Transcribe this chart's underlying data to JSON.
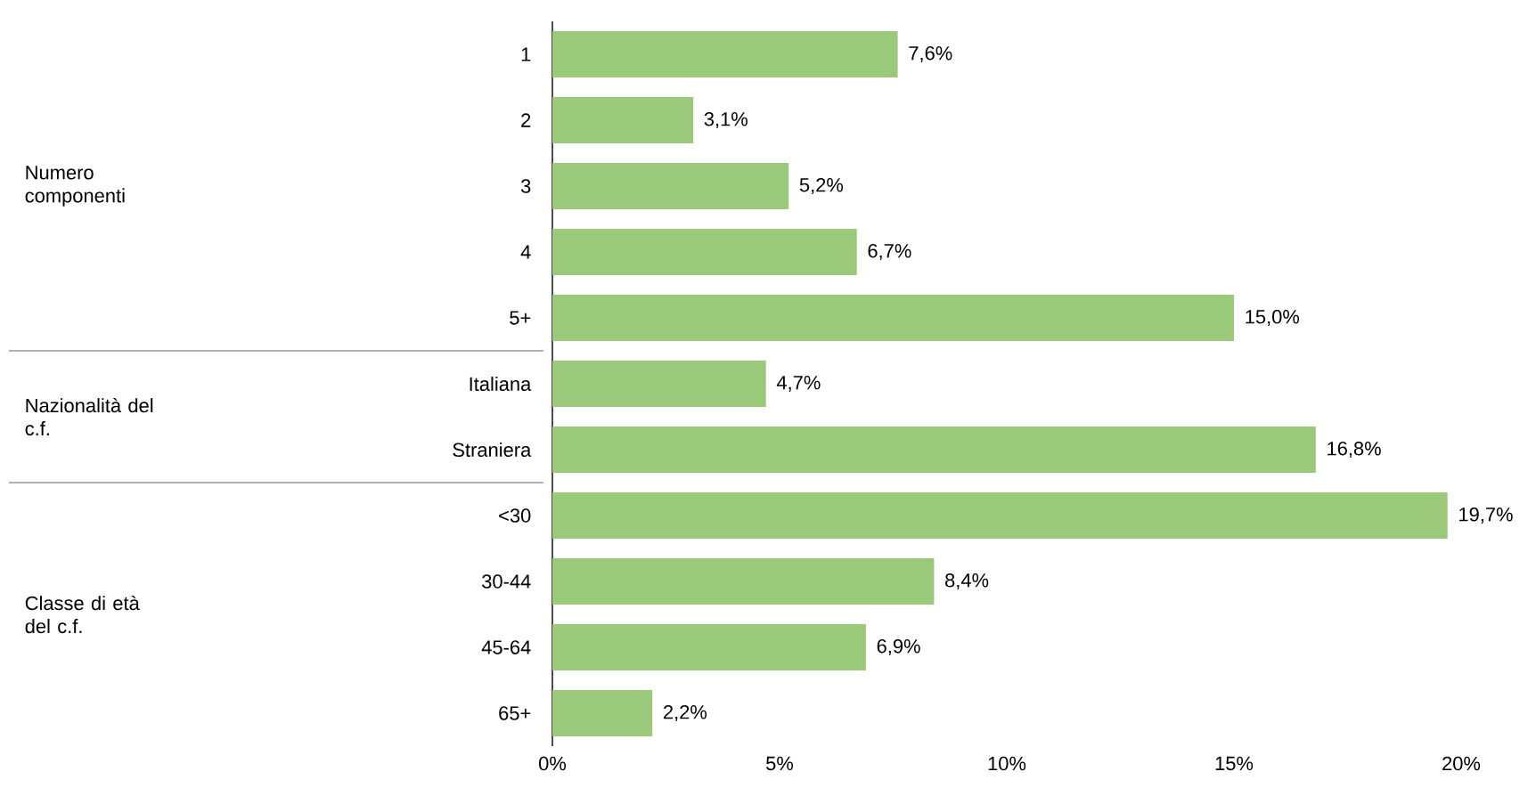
{
  "chart_data": {
    "type": "bar",
    "orientation": "horizontal",
    "categories": [
      "1",
      "2",
      "3",
      "4",
      "5+",
      "Italiana",
      "Straniera",
      "<30",
      "30-44",
      "45-64",
      "65+"
    ],
    "values": [
      7.6,
      3.1,
      5.2,
      6.7,
      15.0,
      4.7,
      16.8,
      19.7,
      8.4,
      6.9,
      2.2
    ],
    "value_labels": [
      "7,6%",
      "3,1%",
      "5,2%",
      "6,7%",
      "15,0%",
      "4,7%",
      "16,8%",
      "19,7%",
      "8,4%",
      "6,9%",
      "2,2%"
    ],
    "color": "#9bc97a",
    "xlim": [
      0,
      20
    ],
    "xticks": [
      {
        "value": 0,
        "label": "0%"
      },
      {
        "value": 5,
        "label": "5%"
      },
      {
        "value": 10,
        "label": "10%"
      },
      {
        "value": 15,
        "label": "15%"
      },
      {
        "value": 20,
        "label": "20%"
      }
    ],
    "annotations": [
      "Numero componenti",
      "Nazionalità del c.f.",
      "Classe di età del c.f."
    ],
    "grid": false
  }
}
